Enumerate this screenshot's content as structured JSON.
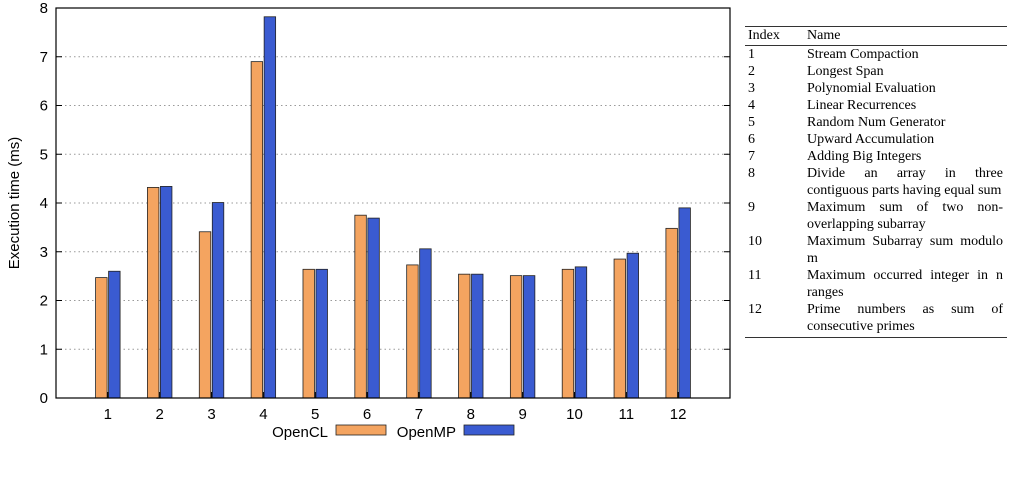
{
  "chart_data": {
    "type": "bar",
    "title": "",
    "xlabel": "",
    "ylabel": "Execution time (ms)",
    "ylim": [
      0,
      8
    ],
    "yticks": [
      "0",
      "1",
      "2",
      "3",
      "4",
      "5",
      "6",
      "7",
      "8"
    ],
    "categories": [
      "1",
      "2",
      "3",
      "4",
      "5",
      "6",
      "7",
      "8",
      "9",
      "10",
      "11",
      "12"
    ],
    "series": [
      {
        "name": "OpenCL",
        "color": "#f4a460",
        "values": [
          2.47,
          4.32,
          3.41,
          6.9,
          2.64,
          3.75,
          2.73,
          2.54,
          2.51,
          2.64,
          2.85,
          3.48
        ]
      },
      {
        "name": "OpenMP",
        "color": "#3a5bd1",
        "values": [
          2.6,
          4.34,
          4.01,
          7.82,
          2.64,
          3.69,
          3.06,
          2.54,
          2.51,
          2.69,
          2.97,
          3.9
        ]
      }
    ],
    "grid": "horizontal dotted",
    "legend": "bottom"
  },
  "table": {
    "headers": [
      "Index",
      "Name"
    ],
    "rows": [
      {
        "index": "1",
        "name": "Stream Compaction"
      },
      {
        "index": "2",
        "name": "Longest Span"
      },
      {
        "index": "3",
        "name": "Polynomial Evaluation"
      },
      {
        "index": "4",
        "name": "Linear Recurrences"
      },
      {
        "index": "5",
        "name": "Random Num Generator"
      },
      {
        "index": "6",
        "name": "Upward Accumulation"
      },
      {
        "index": "7",
        "name": "Adding Big Integers"
      },
      {
        "index": "8",
        "name": "Divide an array in three contiguous parts having equal sum"
      },
      {
        "index": "9",
        "name": "Maximum sum of two non-overlapping subarray"
      },
      {
        "index": "10",
        "name": "Maximum Subarray sum modulo m"
      },
      {
        "index": "11",
        "name": "Maximum occurred integer in n ranges"
      },
      {
        "index": "12",
        "name": "Prime numbers as sum of consecutive primes"
      }
    ]
  }
}
